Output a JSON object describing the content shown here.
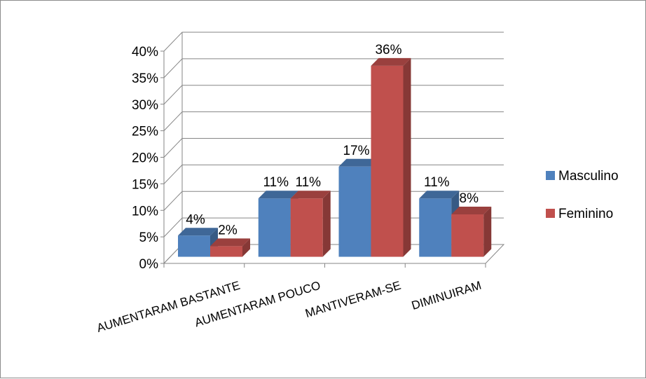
{
  "chart_data": {
    "type": "bar",
    "categories": [
      "AUMENTARAM BASTANTE",
      "AUMENTARAM POUCO",
      "MANTIVERAM-SE",
      "DIMINUIRAM"
    ],
    "series": [
      {
        "name": "Masculino",
        "values": [
          4,
          11,
          17,
          11
        ],
        "labels": [
          "4%",
          "11%",
          "17%",
          "11%"
        ],
        "color": "#4F81BD"
      },
      {
        "name": "Feminino",
        "values": [
          2,
          11,
          36,
          8
        ],
        "labels": [
          "2%",
          "11%",
          "36%",
          "8%"
        ],
        "color": "#C0504D"
      }
    ],
    "ylim": [
      0,
      40
    ],
    "yticks": [
      0,
      5,
      10,
      15,
      20,
      25,
      30,
      35,
      40
    ],
    "ytick_labels": [
      "0%",
      "5%",
      "10%",
      "15%",
      "20%",
      "25%",
      "30%",
      "35%",
      "40%"
    ],
    "grid": true,
    "legend": "right",
    "style": "3d-clustered-column"
  }
}
